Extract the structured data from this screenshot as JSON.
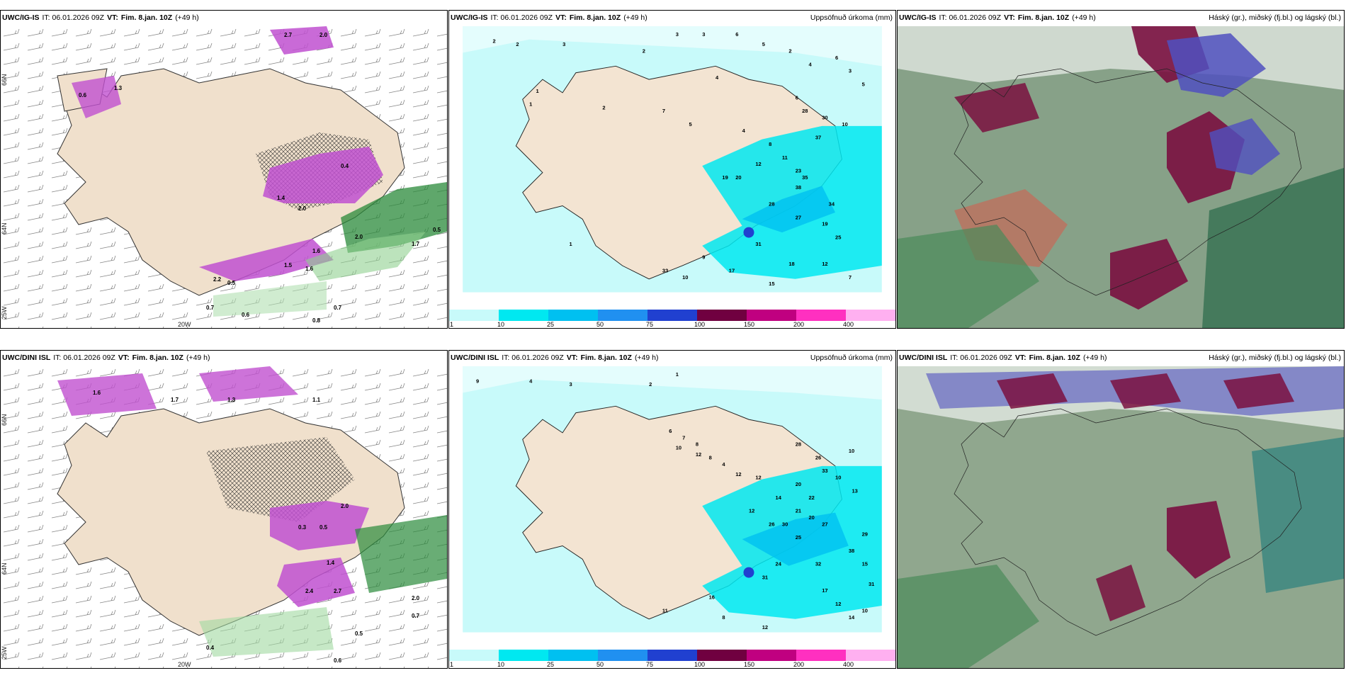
{
  "panels": [
    {
      "model": "UWC/IG-IS",
      "it": "IT: 06.01.2026 09Z",
      "vt_label": "VT:",
      "vt": "Fim. 8.jan. 10Z",
      "lead": "(+49 h)",
      "right": ""
    },
    {
      "model": "UWC/IG-IS",
      "it": "IT: 06.01.2026 09Z",
      "vt_label": "VT:",
      "vt": "Fim. 8.jan. 10Z",
      "lead": "(+49 h)",
      "right": "Uppsöfnuð úrkoma (mm)"
    },
    {
      "model": "UWC/IG-IS",
      "it": "IT: 06.01.2026 09Z",
      "vt_label": "VT:",
      "vt": "Fim. 8.jan. 10Z",
      "lead": "(+49 h)",
      "right": "Háský (gr.), miðský (fj.bl.) og lágský (bl.)"
    },
    {
      "model": "UWC/DINI ISL",
      "it": "IT: 06.01.2026 09Z",
      "vt_label": "VT:",
      "vt": "Fim. 8.jan. 10Z",
      "lead": "(+49 h)",
      "right": ""
    },
    {
      "model": "UWC/DINI ISL",
      "it": "IT: 06.01.2026 09Z",
      "vt_label": "VT:",
      "vt": "Fim. 8.jan. 10Z",
      "lead": "(+49 h)",
      "right": "Uppsöfnuð úrkoma (mm)"
    },
    {
      "model": "UWC/DINI ISL",
      "it": "IT: 06.01.2026 09Z",
      "vt_label": "VT:",
      "vt": "Fim. 8.jan. 10Z",
      "lead": "(+49 h)",
      "right": "Háský (gr.), miðský (fj.bl.) og lágský (bl.)"
    }
  ],
  "grid_labels": {
    "lat_66": "66N",
    "lat_64": "64N",
    "lon_25": "25W",
    "lon_20": "20W"
  },
  "colorbar": {
    "labels": [
      "1",
      "10",
      "25",
      "50",
      "75",
      "100",
      "150",
      "200",
      "400"
    ],
    "colors": [
      "#c8fafa",
      "#00e8f0",
      "#00c0f0",
      "#2090f0",
      "#2040d0",
      "#700040",
      "#c00080",
      "#ff30c0",
      "#ffb0f0"
    ]
  },
  "precip_numbers_top": [
    "2",
    "3",
    "3",
    "2",
    "3",
    "6",
    "5",
    "2",
    "4",
    "6",
    "3",
    "5",
    "4",
    "1",
    "2",
    "7",
    "5",
    "4",
    "8",
    "10",
    "6",
    "28",
    "30",
    "37",
    "11",
    "12",
    "23",
    "35",
    "38",
    "34",
    "20",
    "19",
    "25",
    "28",
    "27",
    "19",
    "31",
    "17",
    "18",
    "15",
    "12",
    "10",
    "7",
    "9",
    "2",
    "1",
    "1",
    "33"
  ],
  "precip_numbers_bottom": [
    "9",
    "4",
    "3",
    "1",
    "2",
    "6",
    "7",
    "8",
    "10",
    "12",
    "8",
    "4",
    "12",
    "10",
    "12",
    "28",
    "26",
    "33",
    "10",
    "13",
    "14",
    "12",
    "20",
    "22",
    "27",
    "26",
    "30",
    "25",
    "29",
    "38",
    "15",
    "31",
    "32",
    "24",
    "17",
    "12",
    "16",
    "11",
    "10",
    "14",
    "8",
    "12",
    "20",
    "21",
    "31"
  ],
  "pink_values_top": [
    "2.7",
    "2.0",
    "1.3",
    "0.6",
    "0.4",
    "1.4",
    "2.0",
    "1.6",
    "2.2",
    "0.5",
    "1.5",
    "1.6",
    "2.0",
    "1.7",
    "0.7",
    "0.6",
    "0.8",
    "0.5",
    "0.7"
  ],
  "pink_values_bottom": [
    "2.0",
    "1.6",
    "1.3",
    "1.7",
    "1.1",
    "1.4",
    "0.3",
    "0.5",
    "2.4",
    "2.7",
    "2.0",
    "0.7",
    "0.5",
    "0.4",
    "0.6"
  ]
}
